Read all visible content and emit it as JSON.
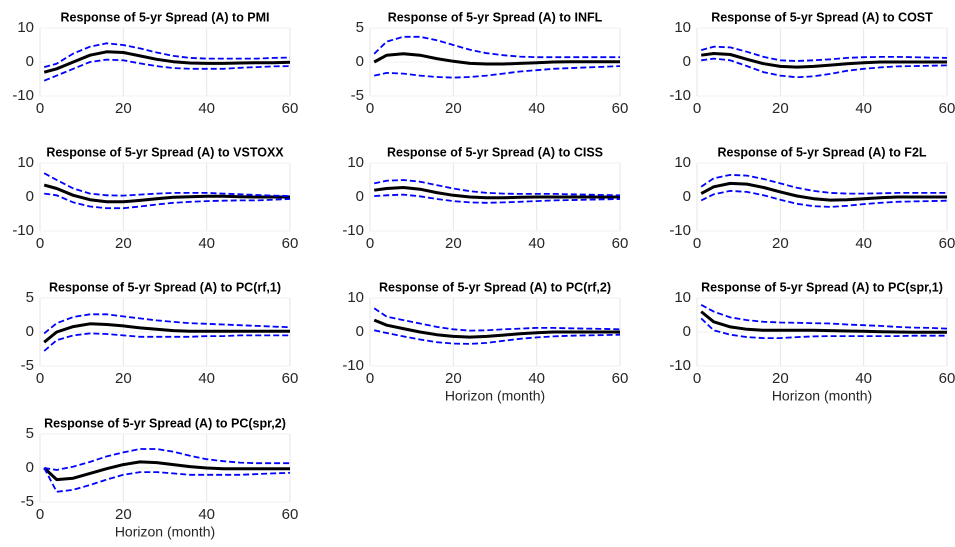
{
  "chart_data": [
    {
      "type": "line",
      "title": "Response of 5-yr Spread (A) to PMI",
      "grid": true,
      "x": [
        1,
        4,
        8,
        12,
        16,
        20,
        24,
        28,
        32,
        36,
        40,
        44,
        48,
        52,
        56,
        60
      ],
      "xlim": [
        0,
        60
      ],
      "xticks": [
        0,
        20,
        40,
        60
      ],
      "ylim": [
        -10,
        10
      ],
      "yticks": [
        -10,
        0,
        10
      ],
      "series": [
        {
          "color": "#000000",
          "dash": false,
          "values": [
            -3,
            -2,
            0,
            2,
            3,
            2.8,
            1.8,
            0.8,
            0.1,
            -0.3,
            -0.4,
            -0.4,
            -0.3,
            -0.2,
            -0.2,
            -0.1
          ]
        },
        {
          "color": "#0000ff",
          "dash": true,
          "values": [
            -1.5,
            -0.5,
            2.5,
            4.5,
            5.5,
            5,
            4,
            2.8,
            1.8,
            1.2,
            1,
            1,
            1,
            1,
            1.2,
            1.3
          ]
        },
        {
          "color": "#0000ff",
          "dash": true,
          "values": [
            -5.5,
            -4,
            -2,
            0,
            0.7,
            0.5,
            -0.4,
            -1.2,
            -1.8,
            -2,
            -2,
            -2,
            -1.7,
            -1.5,
            -1.3,
            -1.2
          ]
        }
      ]
    },
    {
      "type": "line",
      "title": "Response of 5-yr Spread (A) to INFL",
      "grid": true,
      "x": [
        1,
        4,
        8,
        12,
        16,
        20,
        24,
        28,
        32,
        36,
        40,
        44,
        48,
        52,
        56,
        60
      ],
      "xlim": [
        0,
        60
      ],
      "xticks": [
        0,
        20,
        40,
        60
      ],
      "ylim": [
        -5,
        5
      ],
      "yticks": [
        -5,
        0,
        5
      ],
      "series": [
        {
          "color": "#000000",
          "dash": false,
          "values": [
            0,
            1,
            1.2,
            1,
            0.5,
            0.1,
            -0.2,
            -0.3,
            -0.3,
            -0.2,
            -0.1,
            0,
            0.05,
            0.05,
            0.05,
            0.05
          ]
        },
        {
          "color": "#0000ff",
          "dash": true,
          "values": [
            1.2,
            3,
            3.7,
            3.7,
            3.2,
            2.5,
            1.8,
            1.3,
            1,
            0.8,
            0.7,
            0.7,
            0.7,
            0.7,
            0.7,
            0.7
          ]
        },
        {
          "color": "#0000ff",
          "dash": true,
          "values": [
            -2,
            -1.6,
            -1.7,
            -2,
            -2.2,
            -2.3,
            -2.2,
            -2,
            -1.7,
            -1.4,
            -1.2,
            -1,
            -0.9,
            -0.8,
            -0.7,
            -0.6
          ]
        }
      ]
    },
    {
      "type": "line",
      "title": "Response of 5-yr Spread (A) to COST",
      "grid": true,
      "x": [
        1,
        4,
        8,
        12,
        16,
        20,
        24,
        28,
        32,
        36,
        40,
        44,
        48,
        52,
        56,
        60
      ],
      "xlim": [
        0,
        60
      ],
      "xticks": [
        0,
        20,
        40,
        60
      ],
      "ylim": [
        -10,
        10
      ],
      "yticks": [
        -10,
        0,
        10
      ],
      "series": [
        {
          "color": "#000000",
          "dash": false,
          "values": [
            2,
            2.5,
            2.2,
            0.8,
            -0.5,
            -1.3,
            -1.5,
            -1.3,
            -0.9,
            -0.5,
            -0.2,
            0,
            0,
            0,
            0,
            0
          ]
        },
        {
          "color": "#0000ff",
          "dash": true,
          "values": [
            3.5,
            4.5,
            4.3,
            3,
            1.5,
            0.5,
            0.3,
            0.5,
            0.8,
            1.2,
            1.4,
            1.5,
            1.5,
            1.4,
            1.3,
            1.2
          ]
        },
        {
          "color": "#0000ff",
          "dash": true,
          "values": [
            0.5,
            1,
            0.5,
            -1.2,
            -3,
            -4,
            -4.5,
            -4.2,
            -3.5,
            -2.6,
            -2,
            -1.6,
            -1.3,
            -1.2,
            -1.1,
            -1
          ]
        }
      ]
    },
    {
      "type": "line",
      "title": "Response of 5-yr Spread (A) to VSTOXX",
      "grid": true,
      "x": [
        1,
        4,
        8,
        12,
        16,
        20,
        24,
        28,
        32,
        36,
        40,
        44,
        48,
        52,
        56,
        60
      ],
      "xlim": [
        0,
        60
      ],
      "xticks": [
        0,
        20,
        40,
        60
      ],
      "ylim": [
        -10,
        10
      ],
      "yticks": [
        -10,
        0,
        10
      ],
      "series": [
        {
          "color": "#000000",
          "dash": false,
          "values": [
            3.5,
            2.5,
            0.5,
            -0.8,
            -1.4,
            -1.4,
            -1,
            -0.5,
            -0.1,
            0.1,
            0.2,
            0.2,
            0.1,
            0,
            0,
            0
          ]
        },
        {
          "color": "#0000ff",
          "dash": true,
          "values": [
            7,
            5,
            2.5,
            1,
            0.5,
            0.4,
            0.7,
            1,
            1.2,
            1.2,
            1.2,
            1,
            0.8,
            0.6,
            0.4,
            0.3
          ]
        },
        {
          "color": "#0000ff",
          "dash": true,
          "values": [
            1,
            0.5,
            -1.6,
            -2.8,
            -3.3,
            -3.3,
            -2.8,
            -2.2,
            -1.7,
            -1.4,
            -1.2,
            -1.1,
            -1,
            -1,
            -0.8,
            -0.6
          ]
        }
      ]
    },
    {
      "type": "line",
      "title": "Response of 5-yr Spread (A) to CISS",
      "grid": true,
      "x": [
        1,
        4,
        8,
        12,
        16,
        20,
        24,
        28,
        32,
        36,
        40,
        44,
        48,
        52,
        56,
        60
      ],
      "xlim": [
        0,
        60
      ],
      "xticks": [
        0,
        20,
        40,
        60
      ],
      "ylim": [
        -10,
        10
      ],
      "yticks": [
        -10,
        0,
        10
      ],
      "series": [
        {
          "color": "#000000",
          "dash": false,
          "values": [
            2,
            2.5,
            2.8,
            2.3,
            1.3,
            0.5,
            0,
            -0.2,
            -0.2,
            -0.1,
            0,
            0,
            0,
            0,
            0,
            0
          ]
        },
        {
          "color": "#0000ff",
          "dash": true,
          "values": [
            4,
            4.8,
            5,
            4.5,
            3.5,
            2.5,
            1.7,
            1.2,
            1,
            0.9,
            0.9,
            0.9,
            0.8,
            0.7,
            0.6,
            0.5
          ]
        },
        {
          "color": "#0000ff",
          "dash": true,
          "values": [
            0.3,
            0.5,
            0.7,
            0.2,
            -0.6,
            -1.2,
            -1.6,
            -1.7,
            -1.6,
            -1.4,
            -1.2,
            -1,
            -0.9,
            -0.8,
            -0.7,
            -0.6
          ]
        }
      ]
    },
    {
      "type": "line",
      "title": "Response of 5-yr Spread (A) to F2L",
      "grid": true,
      "x": [
        1,
        4,
        8,
        12,
        16,
        20,
        24,
        28,
        32,
        36,
        40,
        44,
        48,
        52,
        56,
        60
      ],
      "xlim": [
        0,
        60
      ],
      "xticks": [
        0,
        20,
        40,
        60
      ],
      "ylim": [
        -10,
        10
      ],
      "yticks": [
        -10,
        0,
        10
      ],
      "series": [
        {
          "color": "#000000",
          "dash": false,
          "values": [
            1,
            3,
            4,
            3.8,
            2.8,
            1.5,
            0.3,
            -0.5,
            -0.9,
            -0.8,
            -0.5,
            -0.2,
            0,
            0,
            0,
            0
          ]
        },
        {
          "color": "#0000ff",
          "dash": true,
          "values": [
            3,
            5.5,
            6.5,
            6.3,
            5.3,
            4,
            2.7,
            1.8,
            1.2,
            1,
            1,
            1.1,
            1.2,
            1.2,
            1.2,
            1.2
          ]
        },
        {
          "color": "#0000ff",
          "dash": true,
          "values": [
            -1,
            0.8,
            1.8,
            1.5,
            0.5,
            -0.8,
            -2,
            -2.7,
            -2.9,
            -2.6,
            -2.1,
            -1.7,
            -1.4,
            -1.3,
            -1.2,
            -1.1
          ]
        }
      ]
    },
    {
      "type": "line",
      "title": "Response of 5-yr Spread (A) to PC(rf,1)",
      "grid": true,
      "x": [
        1,
        4,
        8,
        12,
        16,
        20,
        24,
        28,
        32,
        36,
        40,
        44,
        48,
        52,
        56,
        60
      ],
      "xlim": [
        0,
        60
      ],
      "xticks": [
        0,
        20,
        40,
        60
      ],
      "ylim": [
        -5,
        5
      ],
      "yticks": [
        -5,
        0,
        5
      ],
      "series": [
        {
          "color": "#000000",
          "dash": false,
          "values": [
            -1.5,
            0,
            0.8,
            1.2,
            1.1,
            0.9,
            0.6,
            0.4,
            0.2,
            0.1,
            0.1,
            0.1,
            0.1,
            0.1,
            0.1,
            0.1
          ]
        },
        {
          "color": "#0000ff",
          "dash": true,
          "values": [
            -0.2,
            1.3,
            2.2,
            2.6,
            2.6,
            2.3,
            2,
            1.7,
            1.5,
            1.3,
            1.2,
            1.1,
            1,
            0.9,
            0.8,
            0.7
          ]
        },
        {
          "color": "#0000ff",
          "dash": true,
          "values": [
            -2.8,
            -1.2,
            -0.5,
            -0.2,
            -0.3,
            -0.5,
            -0.7,
            -0.7,
            -0.7,
            -0.7,
            -0.6,
            -0.6,
            -0.5,
            -0.5,
            -0.5,
            -0.5
          ]
        }
      ]
    },
    {
      "type": "line",
      "title": "Response of 5-yr Spread (A) to PC(rf,2)",
      "xlabel": "Horizon (month)",
      "grid": true,
      "x": [
        1,
        4,
        8,
        12,
        16,
        20,
        24,
        28,
        32,
        36,
        40,
        44,
        48,
        52,
        56,
        60
      ],
      "xlim": [
        0,
        60
      ],
      "xticks": [
        0,
        20,
        40,
        60
      ],
      "ylim": [
        -10,
        10
      ],
      "yticks": [
        -10,
        0,
        10
      ],
      "series": [
        {
          "color": "#000000",
          "dash": false,
          "values": [
            3.5,
            2,
            1,
            0,
            -0.8,
            -1.3,
            -1.5,
            -1.3,
            -0.9,
            -0.5,
            -0.2,
            0,
            0,
            0,
            0,
            0
          ]
        },
        {
          "color": "#0000ff",
          "dash": true,
          "values": [
            7,
            4.5,
            3.5,
            2.5,
            1.5,
            0.8,
            0.4,
            0.5,
            0.8,
            1,
            1.2,
            1.2,
            1.1,
            1,
            0.9,
            0.8
          ]
        },
        {
          "color": "#0000ff",
          "dash": true,
          "values": [
            0.5,
            -0.3,
            -1.3,
            -2.2,
            -3,
            -3.4,
            -3.5,
            -3.2,
            -2.6,
            -2,
            -1.6,
            -1.3,
            -1.1,
            -1,
            -0.9,
            -0.8
          ]
        }
      ]
    },
    {
      "type": "line",
      "title": "Response of 5-yr Spread (A) to PC(spr,1)",
      "xlabel": "Horizon (month)",
      "grid": true,
      "x": [
        1,
        4,
        8,
        12,
        16,
        20,
        24,
        28,
        32,
        36,
        40,
        44,
        48,
        52,
        56,
        60
      ],
      "xlim": [
        0,
        60
      ],
      "xticks": [
        0,
        20,
        40,
        60
      ],
      "ylim": [
        -10,
        10
      ],
      "yticks": [
        -10,
        0,
        10
      ],
      "series": [
        {
          "color": "#000000",
          "dash": false,
          "values": [
            6,
            3,
            1.5,
            0.8,
            0.5,
            0.5,
            0.5,
            0.5,
            0.4,
            0.3,
            0.2,
            0.1,
            0,
            -0.1,
            -0.1,
            -0.1
          ]
        },
        {
          "color": "#0000ff",
          "dash": true,
          "values": [
            8,
            6,
            4.3,
            3.5,
            3,
            2.8,
            2.7,
            2.6,
            2.5,
            2.2,
            2,
            1.8,
            1.5,
            1.3,
            1.2,
            1
          ]
        },
        {
          "color": "#0000ff",
          "dash": true,
          "values": [
            4,
            0.5,
            -0.8,
            -1.5,
            -1.8,
            -1.8,
            -1.5,
            -1.3,
            -1.2,
            -1.2,
            -1.2,
            -1.2,
            -1.2,
            -1.1,
            -1.1,
            -1.1
          ]
        }
      ]
    },
    {
      "type": "line",
      "title": "Response of 5-yr Spread (A) to PC(spr,2)",
      "xlabel": "Horizon (month)",
      "grid": true,
      "x": [
        1,
        4,
        8,
        12,
        16,
        20,
        24,
        28,
        32,
        36,
        40,
        44,
        48,
        52,
        56,
        60
      ],
      "xlim": [
        0,
        60
      ],
      "xticks": [
        0,
        20,
        40,
        60
      ],
      "ylim": [
        -5,
        5
      ],
      "yticks": [
        -5,
        0,
        5
      ],
      "series": [
        {
          "color": "#000000",
          "dash": false,
          "values": [
            0,
            -1.7,
            -1.5,
            -0.8,
            -0.1,
            0.5,
            0.9,
            0.8,
            0.5,
            0.2,
            0,
            -0.1,
            -0.1,
            -0.1,
            -0.1,
            -0.1
          ]
        },
        {
          "color": "#0000ff",
          "dash": true,
          "values": [
            0,
            -0.3,
            0.2,
            0.9,
            1.7,
            2.3,
            2.8,
            2.8,
            2.4,
            1.8,
            1.3,
            1,
            0.8,
            0.7,
            0.7,
            0.7
          ]
        },
        {
          "color": "#0000ff",
          "dash": true,
          "values": [
            0,
            -3.5,
            -3.2,
            -2.5,
            -1.7,
            -1,
            -0.6,
            -0.6,
            -0.8,
            -1,
            -1,
            -1,
            -1,
            -0.9,
            -0.8,
            -0.7
          ]
        }
      ]
    }
  ]
}
